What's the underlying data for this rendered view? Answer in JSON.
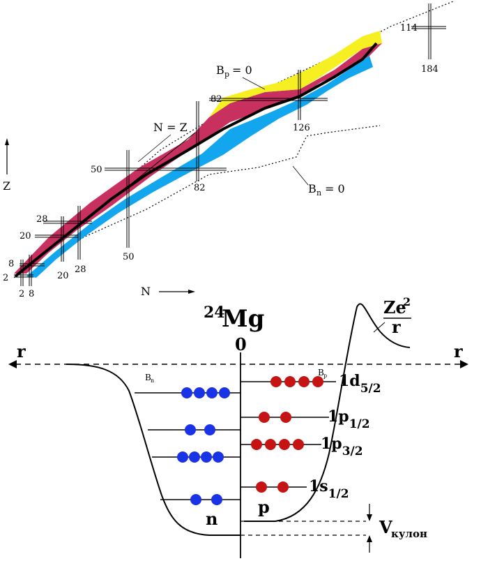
{
  "chart": {
    "axes": {
      "z_label": "Z",
      "n_label": "N"
    },
    "magic_lines": {
      "proton_magic": [
        "2",
        "8",
        "20",
        "28",
        "50",
        "82",
        "114"
      ],
      "neutron_magic": [
        "2",
        "8",
        "20",
        "28",
        "50",
        "82",
        "126",
        "184"
      ]
    },
    "annotations": {
      "n_eq_z": "N = Z",
      "bp": "B",
      "bp_sub": "p",
      "bp_tail": "= 0",
      "bn": "B",
      "bn_sub": "n",
      "bn_tail": "= 0"
    },
    "colors": {
      "stable": "#000000",
      "beta_plus": "#c8315f",
      "beta_minus": "#12a6ee",
      "alpha": "#f6f023"
    }
  },
  "diagram": {
    "title_mass": "24",
    "title_element": "Mg",
    "axis_r_left": "r",
    "axis_r_right": "r",
    "origin": "0",
    "coulomb_num": "Ze",
    "coulomb_exp": "2",
    "coulomb_den": "r",
    "bn": "B",
    "bn_sub": "n",
    "bp": "B",
    "bp_sub": "p",
    "neutron_label": "n",
    "proton_label": "p",
    "v_label": "V",
    "v_sub": "кулон",
    "levels": [
      {
        "name": "1d",
        "sub": "5/2",
        "neutrons": 4,
        "protons": 4
      },
      {
        "name": "1p",
        "sub": "1/2",
        "neutrons": 2,
        "protons": 2
      },
      {
        "name": "1p",
        "sub": "3/2",
        "neutrons": 4,
        "protons": 4
      },
      {
        "name": "1s",
        "sub": "1/2",
        "neutrons": 2,
        "protons": 2
      }
    ],
    "colors": {
      "neutron": "#1a33e6",
      "proton": "#c41414"
    }
  }
}
